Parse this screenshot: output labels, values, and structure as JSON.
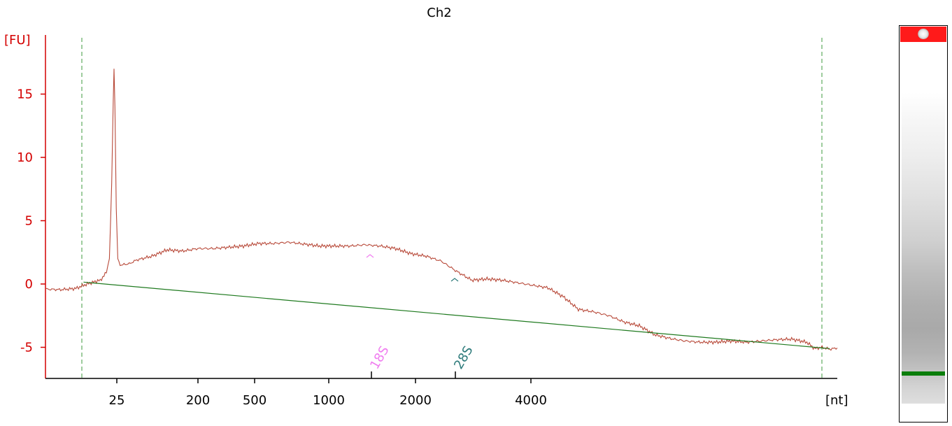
{
  "chart_data": {
    "type": "line",
    "title": "Ch2",
    "ylabel": "[FU]",
    "xlabel": "[nt]",
    "ylim": [
      -7.5,
      19
    ],
    "yticks": [
      -5,
      0,
      5,
      10,
      15
    ],
    "xticks": [
      "25",
      "200",
      "500",
      "1000",
      "2000",
      "4000"
    ],
    "markers": [
      {
        "label": "18S",
        "color": "#f07ef0"
      },
      {
        "label": "28S",
        "color": "#2e7b7b"
      }
    ],
    "series": [
      {
        "color": "#b84a3a",
        "points": [
          [
            0.0,
            -0.4
          ],
          [
            1.0,
            -0.45
          ],
          [
            2.0,
            -0.35
          ],
          [
            2.5,
            -0.1
          ],
          [
            3.0,
            0.1
          ],
          [
            3.6,
            0.3
          ],
          [
            4.0,
            0.9
          ],
          [
            4.2,
            2.0
          ],
          [
            4.35,
            8.0
          ],
          [
            4.45,
            14.5
          ],
          [
            4.5,
            17.0
          ],
          [
            4.56,
            14.0
          ],
          [
            4.65,
            6.0
          ],
          [
            4.75,
            2.0
          ],
          [
            4.9,
            1.5
          ],
          [
            5.5,
            1.6
          ],
          [
            6.0,
            1.9
          ],
          [
            7.0,
            2.2
          ],
          [
            8.0,
            2.7
          ],
          [
            9.0,
            2.6
          ],
          [
            10.0,
            2.8
          ],
          [
            11.0,
            2.8
          ],
          [
            12.0,
            2.9
          ],
          [
            13.0,
            3.0
          ],
          [
            14.0,
            3.2
          ],
          [
            15.0,
            3.2
          ],
          [
            16.0,
            3.3
          ],
          [
            17.0,
            3.15
          ],
          [
            18.0,
            3.0
          ],
          [
            19.0,
            3.0
          ],
          [
            20.0,
            3.0
          ],
          [
            21.0,
            3.1
          ],
          [
            22.0,
            3.0
          ],
          [
            23.0,
            2.8
          ],
          [
            24.0,
            2.4
          ],
          [
            25.0,
            2.2
          ],
          [
            26.0,
            1.8
          ],
          [
            27.0,
            1.0
          ],
          [
            28.0,
            0.3
          ],
          [
            29.0,
            0.4
          ],
          [
            30.0,
            0.3
          ],
          [
            31.0,
            0.1
          ],
          [
            32.0,
            -0.1
          ],
          [
            33.0,
            -0.3
          ],
          [
            34.0,
            -1.0
          ],
          [
            35.0,
            -2.0
          ],
          [
            36.0,
            -2.2
          ],
          [
            37.0,
            -2.5
          ],
          [
            38.0,
            -3.0
          ],
          [
            39.0,
            -3.3
          ],
          [
            40.0,
            -4.0
          ],
          [
            41.0,
            -4.3
          ],
          [
            42.0,
            -4.5
          ],
          [
            43.0,
            -4.6
          ],
          [
            44.0,
            -4.6
          ],
          [
            45.0,
            -4.5
          ],
          [
            46.0,
            -4.6
          ],
          [
            47.0,
            -4.5
          ],
          [
            48.0,
            -4.4
          ],
          [
            49.0,
            -4.35
          ],
          [
            50.0,
            -4.6
          ],
          [
            50.5,
            -5.1
          ],
          [
            51.0,
            -5.0
          ],
          [
            51.5,
            -5.15
          ],
          [
            52.0,
            -5.05
          ]
        ]
      },
      {
        "color": "#1f7a1f",
        "points": [
          [
            2.5,
            0.15
          ],
          [
            51.5,
            -5.1
          ]
        ]
      }
    ]
  }
}
